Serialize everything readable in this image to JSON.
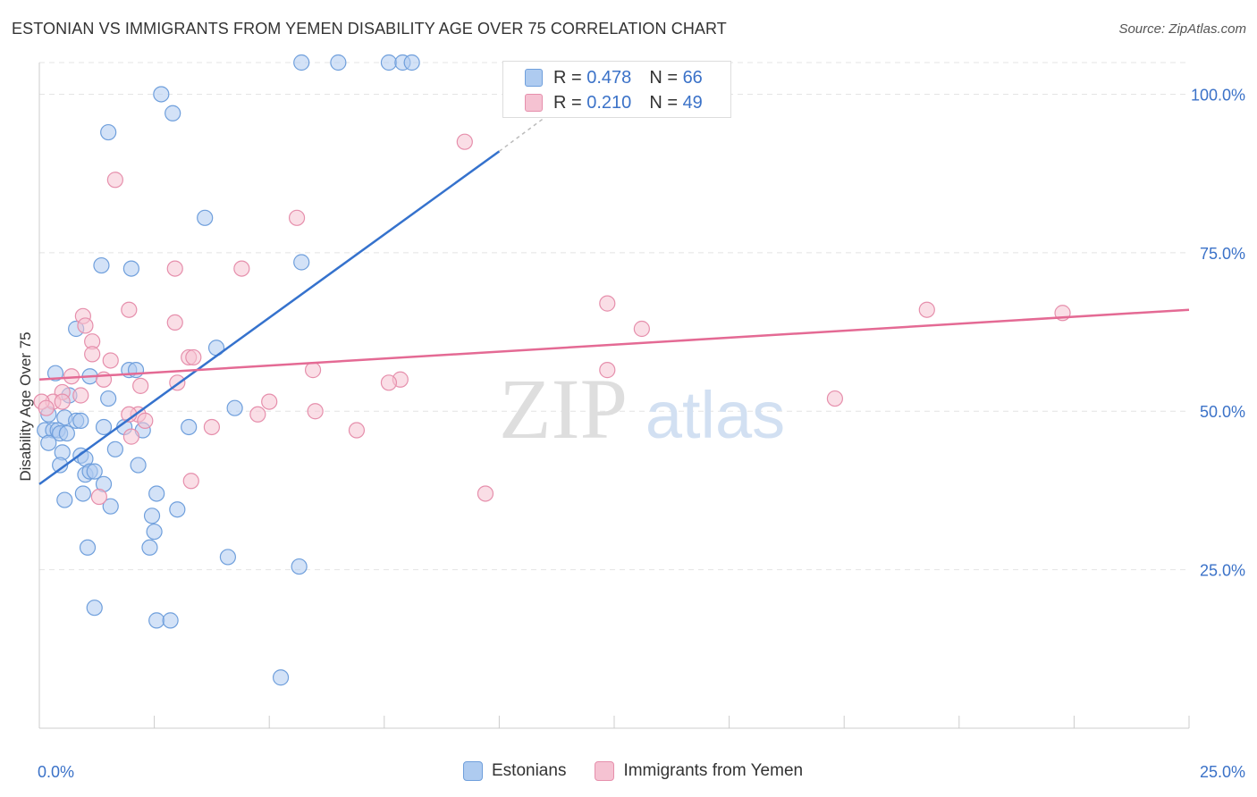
{
  "title": "ESTONIAN VS IMMIGRANTS FROM YEMEN DISABILITY AGE OVER 75 CORRELATION CHART",
  "source": "Source: ZipAtlas.com",
  "watermark": {
    "zip": "ZIP",
    "atlas": "atlas"
  },
  "legend": {
    "r_label": "R =",
    "n_label": "N =",
    "series": [
      {
        "name": "Estonians",
        "r": "0.478",
        "n": "66"
      },
      {
        "name": "Immigrants from Yemen",
        "r": "0.210",
        "n": "49"
      }
    ]
  },
  "colors": {
    "blue_fill": "#aecbf0",
    "blue_stroke": "#6f9fdc",
    "blue_line": "#3572cd",
    "pink_fill": "#f5c2d2",
    "pink_stroke": "#e68fac",
    "pink_line": "#e46a94",
    "tick_label": "#3b72c8",
    "grid": "#e4e4e4"
  },
  "chart_data": {
    "type": "scatter",
    "xlabel": "",
    "ylabel": "Disability Age Over 75",
    "xlim": [
      0,
      25
    ],
    "ylim": [
      0,
      105
    ],
    "x_tick_labels": [
      {
        "value": 0,
        "label": "0.0%"
      },
      {
        "value": 25,
        "label": "25.0%"
      }
    ],
    "y_tick_labels": [
      {
        "value": 25,
        "label": "25.0%"
      },
      {
        "value": 50,
        "label": "50.0%"
      },
      {
        "value": 75,
        "label": "75.0%"
      },
      {
        "value": 100,
        "label": "100.0%"
      }
    ],
    "grid": true,
    "series": [
      {
        "name": "Estonians",
        "r": 0.478,
        "n": 66,
        "trend": {
          "x": [
            0.0,
            10.0
          ],
          "y": [
            38.5,
            91
          ]
        },
        "trend_dashed": {
          "x": [
            10.0,
            11.3
          ],
          "y": [
            91,
            98
          ]
        },
        "points": [
          [
            5.7,
            105
          ],
          [
            6.5,
            105
          ],
          [
            7.6,
            105
          ],
          [
            7.9,
            105
          ],
          [
            8.1,
            105
          ],
          [
            2.65,
            100
          ],
          [
            2.9,
            97
          ],
          [
            1.5,
            94
          ],
          [
            3.6,
            80.5
          ],
          [
            1.35,
            73
          ],
          [
            2.0,
            72.5
          ],
          [
            5.7,
            73.5
          ],
          [
            0.8,
            63
          ],
          [
            3.85,
            60
          ],
          [
            0.35,
            56
          ],
          [
            1.1,
            55.5
          ],
          [
            1.95,
            56.5
          ],
          [
            2.1,
            56.5
          ],
          [
            0.65,
            52.5
          ],
          [
            1.5,
            52
          ],
          [
            4.25,
            50.5
          ],
          [
            0.2,
            49.5
          ],
          [
            0.55,
            49
          ],
          [
            0.8,
            48.5
          ],
          [
            0.9,
            48.5
          ],
          [
            1.4,
            47.5
          ],
          [
            1.85,
            47.5
          ],
          [
            3.25,
            47.5
          ],
          [
            0.12,
            47
          ],
          [
            0.3,
            47
          ],
          [
            0.4,
            47
          ],
          [
            0.45,
            46.5
          ],
          [
            0.6,
            46.5
          ],
          [
            2.25,
            47
          ],
          [
            0.2,
            45
          ],
          [
            1.65,
            44
          ],
          [
            0.5,
            43.5
          ],
          [
            0.9,
            43
          ],
          [
            1.0,
            42.5
          ],
          [
            2.15,
            41.5
          ],
          [
            0.45,
            41.5
          ],
          [
            1.0,
            40
          ],
          [
            1.1,
            40.5
          ],
          [
            1.2,
            40.5
          ],
          [
            1.4,
            38.5
          ],
          [
            0.95,
            37
          ],
          [
            0.55,
            36
          ],
          [
            2.55,
            37
          ],
          [
            1.55,
            35
          ],
          [
            2.45,
            33.5
          ],
          [
            3.0,
            34.5
          ],
          [
            2.5,
            31
          ],
          [
            1.05,
            28.5
          ],
          [
            2.4,
            28.5
          ],
          [
            4.1,
            27
          ],
          [
            5.65,
            25.5
          ],
          [
            1.2,
            19
          ],
          [
            2.55,
            17
          ],
          [
            2.85,
            17
          ],
          [
            5.25,
            8
          ]
        ]
      },
      {
        "name": "Immigrants from Yemen",
        "r": 0.21,
        "n": 49,
        "trend": {
          "x": [
            0.0,
            25.0
          ],
          "y": [
            55,
            66
          ]
        },
        "points": [
          [
            9.25,
            92.5
          ],
          [
            1.65,
            86.5
          ],
          [
            5.6,
            80.5
          ],
          [
            2.95,
            72.5
          ],
          [
            4.4,
            72.5
          ],
          [
            12.35,
            67
          ],
          [
            19.3,
            66
          ],
          [
            22.25,
            65.5
          ],
          [
            1.95,
            66
          ],
          [
            0.95,
            65
          ],
          [
            2.95,
            64
          ],
          [
            1.0,
            63.5
          ],
          [
            13.1,
            63
          ],
          [
            1.15,
            61
          ],
          [
            1.15,
            59
          ],
          [
            3.25,
            58.5
          ],
          [
            3.35,
            58.5
          ],
          [
            1.55,
            58
          ],
          [
            5.95,
            56.5
          ],
          [
            12.35,
            56.5
          ],
          [
            0.7,
            55.5
          ],
          [
            1.4,
            55
          ],
          [
            7.85,
            55
          ],
          [
            7.6,
            54.5
          ],
          [
            2.2,
            54
          ],
          [
            3.0,
            54.5
          ],
          [
            0.9,
            52.5
          ],
          [
            0.5,
            53
          ],
          [
            17.3,
            52
          ],
          [
            0.3,
            51.5
          ],
          [
            0.05,
            51.5
          ],
          [
            0.5,
            51.5
          ],
          [
            0.15,
            50.5
          ],
          [
            5.0,
            51.5
          ],
          [
            2.15,
            49.5
          ],
          [
            4.75,
            49.5
          ],
          [
            6.0,
            50
          ],
          [
            2.3,
            48.5
          ],
          [
            1.95,
            49.5
          ],
          [
            3.75,
            47.5
          ],
          [
            6.9,
            47
          ],
          [
            2.0,
            46
          ],
          [
            3.3,
            39
          ],
          [
            1.3,
            36.5
          ],
          [
            9.7,
            37
          ]
        ]
      }
    ]
  }
}
